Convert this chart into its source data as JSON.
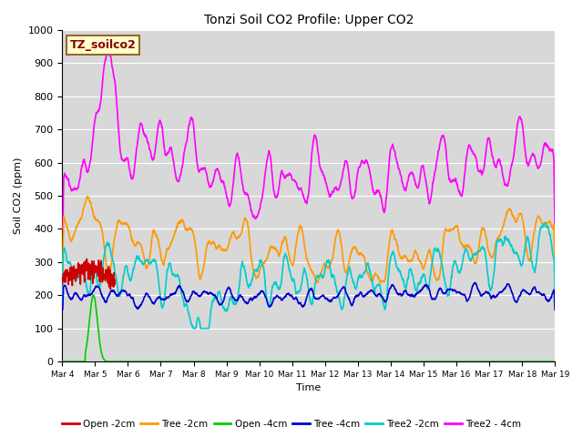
{
  "title": "Tonzi Soil CO2 Profile: Upper CO2",
  "xlabel": "Time",
  "ylabel": "Soil CO2 (ppm)",
  "ylim": [
    0,
    1000
  ],
  "days": 15,
  "legend_label": "TZ_soilco2",
  "series_labels": [
    "Open -2cm",
    "Tree -2cm",
    "Open -4cm",
    "Tree -4cm",
    "Tree2 -2cm",
    "Tree2 - 4cm"
  ],
  "series_colors": [
    "#cc0000",
    "#ff9900",
    "#00cc00",
    "#0000cc",
    "#00cccc",
    "#ff00ff"
  ],
  "xtick_labels": [
    "Mar 4",
    "Mar 5",
    "Mar 6",
    "Mar 7",
    "Mar 8",
    "Mar 9",
    "Mar 10",
    "Mar 11",
    "Mar 12",
    "Mar 13",
    "Mar 14",
    "Mar 15",
    "Mar 16",
    "Mar 17",
    "Mar 18",
    "Mar 19"
  ],
  "ytick_labels": [
    "0",
    "100",
    "200",
    "300",
    "400",
    "500",
    "600",
    "700",
    "800",
    "900",
    "1000"
  ],
  "linewidth": 1.2,
  "grid_color": "#ffffff",
  "plot_bg": "#d8d8d8",
  "fig_bg": "#ffffff"
}
